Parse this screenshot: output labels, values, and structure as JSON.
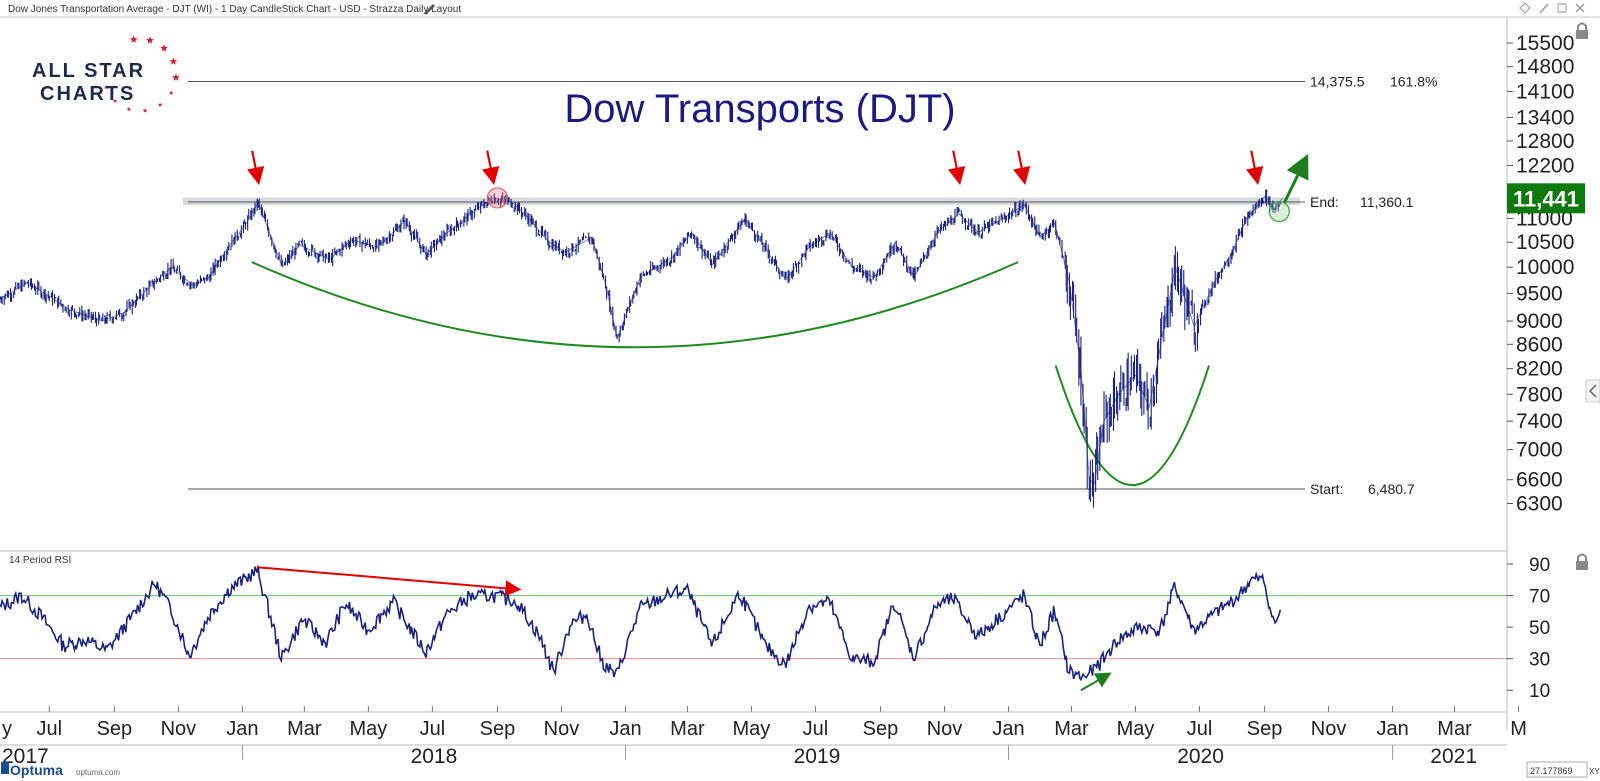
{
  "header": {
    "chart_caption": "Dow Jones Transportation Average - DJT (WI) - 1 Day CandleStick Chart - USD - Strazza Daily Layout"
  },
  "branding": {
    "logo_line1": "ALL STAR",
    "logo_line2": "CHARTS",
    "footer_logo": "Optuma",
    "footer_url": "optuma.com"
  },
  "status": {
    "xy_readout": "27.177869",
    "xy_label": "XY"
  },
  "colors": {
    "price": "#1a237e",
    "resistance_band": "#c9ced6",
    "base_curve": "#1e8a1e",
    "arrow_red": "#e00000",
    "arrow_green": "#1e7e1e",
    "price_badge": "#0e7a0e",
    "rsi_line": "#1a237e",
    "rsi_overbought": "#6dbf6d",
    "rsi_oversold": "#f08a8a"
  },
  "chart_data": [
    {
      "type": "candlestick",
      "title": "Dow Transports (DJT)",
      "y_ticks": [
        15500,
        14800,
        14100,
        13400,
        12800,
        12200,
        11000,
        10500,
        10000,
        9500,
        9000,
        8600,
        8200,
        7800,
        7400,
        7000,
        6600,
        6300
      ],
      "y_scale": "log",
      "y_range": [
        6100,
        15900
      ],
      "last_price_label": "11,441",
      "last_price": 11441,
      "levels": [
        {
          "label": "14,375.5",
          "value": 14375.5,
          "extra_label": "161.8%"
        },
        {
          "label": "End:",
          "value": 11360.1,
          "value_label": "11,360.1"
        },
        {
          "label": "Start:",
          "value": 6480.7,
          "value_label": "6,480.7"
        }
      ],
      "resistance_zone": [
        11290,
        11460
      ],
      "x_month_ticks": [
        "Jul",
        "Sep",
        "Nov",
        "Jan",
        "Mar",
        "May",
        "Jul",
        "Sep",
        "Nov",
        "Jan",
        "Mar",
        "May",
        "Jul",
        "Sep",
        "Nov",
        "Jan",
        "Mar",
        "May",
        "Jul",
        "Sep",
        "Nov",
        "Jan",
        "Mar",
        "M"
      ],
      "x_month_dates": [
        "2017-07-01",
        "2017-09-01",
        "2017-11-01",
        "2018-01-01",
        "2018-03-01",
        "2018-05-01",
        "2018-07-01",
        "2018-09-01",
        "2018-11-01",
        "2019-01-01",
        "2019-03-01",
        "2019-05-01",
        "2019-07-01",
        "2019-09-01",
        "2019-11-01",
        "2020-01-01",
        "2020-03-01",
        "2020-05-01",
        "2020-07-01",
        "2020-09-01",
        "2020-11-01",
        "2021-01-01",
        "2021-03-01",
        "2021-05-01"
      ],
      "x_year_labels": [
        "2017",
        "2018",
        "2019",
        "2020",
        "2021"
      ],
      "x_range": [
        "2017-05-15",
        "2021-04-20"
      ],
      "series": [
        {
          "values": [
            [
              "2017-05-15",
              9400
            ],
            [
              "2017-06-10",
              9700
            ],
            [
              "2017-07-01",
              9450
            ],
            [
              "2017-07-20",
              9200
            ],
            [
              "2017-08-20",
              9000
            ],
            [
              "2017-09-10",
              9150
            ],
            [
              "2017-10-01",
              9550
            ],
            [
              "2017-10-25",
              10000
            ],
            [
              "2017-11-15",
              9650
            ],
            [
              "2017-11-30",
              9800
            ],
            [
              "2017-12-15",
              10300
            ],
            [
              "2018-01-05",
              10900
            ],
            [
              "2018-01-16",
              11350
            ],
            [
              "2018-02-08",
              10000
            ],
            [
              "2018-02-25",
              10450
            ],
            [
              "2018-03-25",
              10150
            ],
            [
              "2018-04-15",
              10550
            ],
            [
              "2018-05-10",
              10400
            ],
            [
              "2018-06-05",
              10950
            ],
            [
              "2018-06-25",
              10250
            ],
            [
              "2018-07-15",
              10700
            ],
            [
              "2018-08-10",
              11150
            ],
            [
              "2018-08-28",
              11450
            ],
            [
              "2018-09-15",
              11350
            ],
            [
              "2018-10-01",
              11000
            ],
            [
              "2018-10-20",
              10500
            ],
            [
              "2018-11-05",
              10300
            ],
            [
              "2018-11-30",
              10600
            ],
            [
              "2018-12-14",
              9600
            ],
            [
              "2018-12-24",
              8700
            ],
            [
              "2019-01-15",
              9800
            ],
            [
              "2019-02-15",
              10200
            ],
            [
              "2019-03-05",
              10700
            ],
            [
              "2019-03-25",
              10050
            ],
            [
              "2019-04-25",
              11000
            ],
            [
              "2019-05-15",
              10350
            ],
            [
              "2019-06-03",
              9750
            ],
            [
              "2019-06-25",
              10400
            ],
            [
              "2019-07-15",
              10700
            ],
            [
              "2019-08-05",
              10000
            ],
            [
              "2019-08-26",
              9800
            ],
            [
              "2019-09-15",
              10500
            ],
            [
              "2019-10-03",
              9800
            ],
            [
              "2019-10-25",
              10700
            ],
            [
              "2019-11-15",
              11100
            ],
            [
              "2019-12-03",
              10700
            ],
            [
              "2019-12-27",
              11000
            ],
            [
              "2020-01-16",
              11300
            ],
            [
              "2020-01-31",
              10600
            ],
            [
              "2020-02-14",
              10900
            ],
            [
              "2020-02-28",
              9700
            ],
            [
              "2020-03-10",
              8200
            ],
            [
              "2020-03-18",
              6600
            ],
            [
              "2020-03-23",
              6550
            ],
            [
              "2020-04-01",
              7400
            ],
            [
              "2020-04-15",
              7800
            ],
            [
              "2020-05-01",
              8100
            ],
            [
              "2020-05-14",
              7600
            ],
            [
              "2020-06-08",
              10000
            ],
            [
              "2020-06-26",
              8900
            ],
            [
              "2020-07-15",
              9700
            ],
            [
              "2020-08-01",
              10300
            ],
            [
              "2020-08-15",
              11000
            ],
            [
              "2020-09-02",
              11500
            ],
            [
              "2020-09-10",
              11200
            ],
            [
              "2020-09-18",
              11441
            ]
          ]
        }
      ],
      "annotations": [
        {
          "type": "arrow-down",
          "color": "red",
          "x": "2018-01-16",
          "y": 11750
        },
        {
          "type": "arrow-down",
          "color": "red",
          "x": "2018-08-28",
          "y": 11750
        },
        {
          "type": "arrow-down",
          "color": "red",
          "x": "2019-11-15",
          "y": 11750
        },
        {
          "type": "arrow-down",
          "color": "red",
          "x": "2020-01-16",
          "y": 11750
        },
        {
          "type": "arrow-down",
          "color": "red",
          "x": "2020-08-25",
          "y": 11750
        },
        {
          "type": "arrow-up",
          "color": "green",
          "x_from": "2020-09-20",
          "y_from": 11350,
          "x_to": "2020-10-10",
          "y_to": 12350
        },
        {
          "type": "circle",
          "color": "red",
          "x": "2018-09-01",
          "y": 11450
        },
        {
          "type": "circle",
          "color": "green",
          "x": "2020-09-15",
          "y": 11150
        },
        {
          "type": "curve",
          "color": "green",
          "x_from": "2018-01-10",
          "x_to": "2020-01-10",
          "y_ends": 10100,
          "y_bottom": 8550
        },
        {
          "type": "curve",
          "color": "green",
          "x_from": "2020-02-15",
          "x_to": "2020-07-10",
          "y_ends": 8250,
          "y_bottom": 6530
        }
      ]
    },
    {
      "type": "line",
      "panel_label": "14 Period RSI",
      "y_ticks": [
        90,
        70,
        50,
        30,
        10
      ],
      "ylim": [
        0,
        97
      ],
      "reference_lines": [
        70,
        30
      ],
      "series": [
        {
          "values": [
            [
              "2017-05-15",
              62
            ],
            [
              "2017-06-05",
              70
            ],
            [
              "2017-06-25",
              56
            ],
            [
              "2017-07-15",
              38
            ],
            [
              "2017-08-05",
              42
            ],
            [
              "2017-08-25",
              35
            ],
            [
              "2017-09-20",
              58
            ],
            [
              "2017-10-10",
              78
            ],
            [
              "2017-10-25",
              62
            ],
            [
              "2017-11-12",
              32
            ],
            [
              "2017-12-01",
              58
            ],
            [
              "2017-12-20",
              74
            ],
            [
              "2018-01-16",
              86
            ],
            [
              "2018-02-08",
              30
            ],
            [
              "2018-02-28",
              55
            ],
            [
              "2018-03-22",
              40
            ],
            [
              "2018-04-10",
              65
            ],
            [
              "2018-05-01",
              48
            ],
            [
              "2018-05-25",
              66
            ],
            [
              "2018-06-25",
              34
            ],
            [
              "2018-07-15",
              58
            ],
            [
              "2018-08-05",
              69
            ],
            [
              "2018-08-28",
              70
            ],
            [
              "2018-09-20",
              66
            ],
            [
              "2018-10-10",
              46
            ],
            [
              "2018-10-25",
              22
            ],
            [
              "2018-11-10",
              52
            ],
            [
              "2018-11-26",
              58
            ],
            [
              "2018-12-10",
              28
            ],
            [
              "2018-12-24",
              19
            ],
            [
              "2019-01-15",
              62
            ],
            [
              "2019-02-10",
              70
            ],
            [
              "2019-03-01",
              74
            ],
            [
              "2019-03-25",
              38
            ],
            [
              "2019-04-20",
              72
            ],
            [
              "2019-05-15",
              38
            ],
            [
              "2019-06-03",
              26
            ],
            [
              "2019-06-25",
              63
            ],
            [
              "2019-07-15",
              66
            ],
            [
              "2019-08-05",
              30
            ],
            [
              "2019-08-26",
              28
            ],
            [
              "2019-09-15",
              66
            ],
            [
              "2019-10-03",
              30
            ],
            [
              "2019-10-25",
              64
            ],
            [
              "2019-11-10",
              68
            ],
            [
              "2019-12-03",
              44
            ],
            [
              "2019-12-27",
              58
            ],
            [
              "2020-01-16",
              70
            ],
            [
              "2020-01-31",
              38
            ],
            [
              "2020-02-14",
              60
            ],
            [
              "2020-02-28",
              22
            ],
            [
              "2020-03-12",
              18
            ],
            [
              "2020-03-25",
              24
            ],
            [
              "2020-04-15",
              42
            ],
            [
              "2020-05-05",
              50
            ],
            [
              "2020-05-25",
              48
            ],
            [
              "2020-06-08",
              76
            ],
            [
              "2020-06-26",
              48
            ],
            [
              "2020-07-15",
              58
            ],
            [
              "2020-08-05",
              68
            ],
            [
              "2020-08-20",
              80
            ],
            [
              "2020-09-01",
              80
            ],
            [
              "2020-09-10",
              52
            ],
            [
              "2020-09-18",
              60
            ]
          ]
        }
      ],
      "annotations": [
        {
          "type": "arrow",
          "color": "red",
          "x_from": "2018-01-15",
          "y_from": 88,
          "x_to": "2018-09-20",
          "y_to": 74
        },
        {
          "type": "arrow",
          "color": "green",
          "x_from": "2020-03-10",
          "y_from": 10,
          "x_to": "2020-04-05",
          "y_to": 20
        }
      ]
    }
  ]
}
